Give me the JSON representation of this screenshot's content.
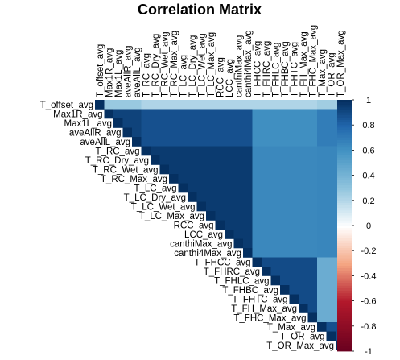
{
  "chart_data": {
    "type": "heatmap",
    "title": "Correlation Matrix",
    "layout": "upper-triangle",
    "variables": [
      "T_offset_avg",
      "Max1R_avg",
      "Max1L_avg",
      "aveAllR_avg",
      "aveAllL_avg",
      "T_RC_avg",
      "T_RC_Dry_avg",
      "T_RC_Wet_avg",
      "T_RC_Max_avg",
      "T_LC_avg",
      "T_LC_Dry_avg",
      "T_LC_Wet_avg",
      "T_LC_Max_avg",
      "RCC_avg",
      "LCC_avg",
      "canthiMax_avg",
      "canthi4Max_avg",
      "T_FHCC_avg",
      "T_FHRC_avg",
      "T_FHLC_avg",
      "T_FHBC_avg",
      "T_FHTC_avg",
      "T_FH_Max_avg",
      "T_FHC_Max_avg",
      "T_Max_avg",
      "T_OR_avg",
      "T_OR_Max_avg"
    ],
    "groups": [
      {
        "id": "A",
        "members": [
          0
        ]
      },
      {
        "id": "B",
        "members": [
          1,
          2,
          3,
          4
        ]
      },
      {
        "id": "C",
        "members": [
          5,
          6,
          7,
          8,
          9,
          10,
          11,
          12,
          13,
          14,
          15,
          16
        ]
      },
      {
        "id": "D",
        "members": [
          17,
          18,
          19,
          20,
          21,
          22,
          23
        ]
      },
      {
        "id": "E",
        "members": [
          24,
          25,
          26
        ]
      }
    ],
    "group_correlations": {
      "A-A": 1.0,
      "A-B": 0.28,
      "A-C": 0.22,
      "A-D": 0.22,
      "A-E": 0.26,
      "B-B": 0.93,
      "B-C": 0.88,
      "B-D": 0.62,
      "B-E": 0.7,
      "C-C": 0.96,
      "C-D": 0.65,
      "C-E": 0.66,
      "D-D": 0.9,
      "D-E": 0.45,
      "E-E": 0.88
    },
    "colorbar": {
      "min": -1,
      "max": 1,
      "ticks": [
        "1",
        "0.8",
        "0.6",
        "0.4",
        "0.2",
        "0",
        "-0.2",
        "-0.4",
        "-0.6",
        "-0.8",
        "-1"
      ],
      "colors": {
        "neg": "#67001f",
        "mid": "#ffffff",
        "pos": "#053061"
      }
    }
  }
}
